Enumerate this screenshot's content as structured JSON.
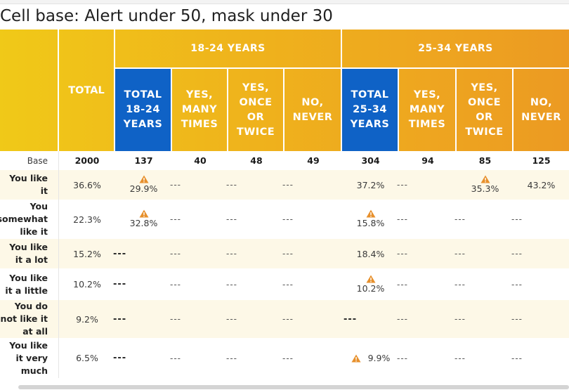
{
  "title": "Cell base: Alert under 50, mask under 30",
  "colors": {
    "gold": "#f2b01a",
    "blue": "#0f62c6",
    "row_shade": "#fdf8e7",
    "warning": "#e7902c"
  },
  "header": {
    "total": "TOTAL",
    "groups": [
      "18-24 YEARS",
      "25-34 YEARS"
    ],
    "columns": [
      {
        "lines": [
          "TOTAL",
          "18-24",
          "YEARS"
        ]
      },
      {
        "lines": [
          "YES,",
          "MANY",
          "TIMES"
        ]
      },
      {
        "lines": [
          "YES,",
          "ONCE",
          "OR",
          "TWICE"
        ]
      },
      {
        "lines": [
          "NO,",
          "NEVER"
        ]
      },
      {
        "lines": [
          "TOTAL",
          "25-34",
          "YEARS"
        ]
      },
      {
        "lines": [
          "YES,",
          "MANY",
          "TIMES"
        ]
      },
      {
        "lines": [
          "YES,",
          "ONCE",
          "OR",
          "TWICE"
        ]
      },
      {
        "lines": [
          "NO,",
          "NEVER"
        ]
      }
    ]
  },
  "base_row": {
    "label": "Base",
    "values": [
      "2000",
      "137",
      "40",
      "48",
      "49",
      "304",
      "94",
      "85",
      "125"
    ]
  },
  "rows": [
    {
      "label": "You like it",
      "total": "36.6%",
      "cells": [
        {
          "v": "29.9%",
          "warn": true
        },
        {
          "v": "---"
        },
        {
          "v": "---"
        },
        {
          "v": "---"
        },
        {
          "v": "37.2%"
        },
        {
          "v": "---"
        },
        {
          "v": "35.3%",
          "warn": true
        },
        {
          "v": "43.2%"
        }
      ]
    },
    {
      "label": "You somewhat like it",
      "total": "22.3%",
      "cells": [
        {
          "v": "32.8%",
          "warn": true
        },
        {
          "v": "---"
        },
        {
          "v": "---"
        },
        {
          "v": "---"
        },
        {
          "v": "15.8%",
          "warn": true
        },
        {
          "v": "---"
        },
        {
          "v": "---"
        },
        {
          "v": "---"
        }
      ]
    },
    {
      "label": "You like it a lot",
      "total": "15.2%",
      "cells": [
        {
          "v": "---",
          "bold": true
        },
        {
          "v": "---"
        },
        {
          "v": "---"
        },
        {
          "v": "---"
        },
        {
          "v": "18.4%"
        },
        {
          "v": "---"
        },
        {
          "v": "---"
        },
        {
          "v": "---"
        }
      ]
    },
    {
      "label": "You like it a little",
      "total": "10.2%",
      "cells": [
        {
          "v": "---",
          "bold": true
        },
        {
          "v": "---"
        },
        {
          "v": "---"
        },
        {
          "v": "---"
        },
        {
          "v": "10.2%",
          "warn": true
        },
        {
          "v": "---"
        },
        {
          "v": "---"
        },
        {
          "v": "---"
        }
      ]
    },
    {
      "label": "You do not like it at all",
      "total": "9.2%",
      "cells": [
        {
          "v": "---",
          "bold": true
        },
        {
          "v": "---"
        },
        {
          "v": "---"
        },
        {
          "v": "---"
        },
        {
          "v": "---",
          "bold": true
        },
        {
          "v": "---"
        },
        {
          "v": "---"
        },
        {
          "v": "---"
        }
      ]
    },
    {
      "label": "You like it very much",
      "total": "6.5%",
      "cells": [
        {
          "v": "---",
          "bold": true
        },
        {
          "v": "---"
        },
        {
          "v": "---"
        },
        {
          "v": "---"
        },
        {
          "v": "9.9%",
          "warn": true,
          "inline": true
        },
        {
          "v": "---"
        },
        {
          "v": "---"
        },
        {
          "v": "---"
        }
      ]
    }
  ]
}
